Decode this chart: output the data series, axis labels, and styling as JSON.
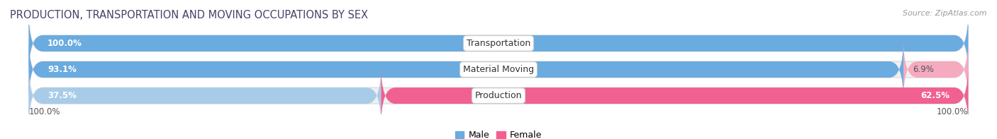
{
  "title": "PRODUCTION, TRANSPORTATION AND MOVING OCCUPATIONS BY SEX",
  "source": "Source: ZipAtlas.com",
  "categories": [
    "Transportation",
    "Material Moving",
    "Production"
  ],
  "male_values": [
    100.0,
    93.1,
    37.5
  ],
  "female_values": [
    0.0,
    6.9,
    62.5
  ],
  "male_color_full": "#6aabe0",
  "male_color_light": "#a8cce8",
  "female_color_light": "#f5aac0",
  "female_color_strong": "#f06090",
  "bar_bg_color": "#efefef",
  "bar_border_color": "#d8d8e0",
  "title_color": "#444466",
  "label_color_dark": "#555555",
  "title_fontsize": 10.5,
  "source_fontsize": 8,
  "label_fontsize": 8.5,
  "cat_fontsize": 9,
  "left_axis_label": "100.0%",
  "right_axis_label": "100.0%",
  "legend_male_label": "Male",
  "legend_female_label": "Female"
}
